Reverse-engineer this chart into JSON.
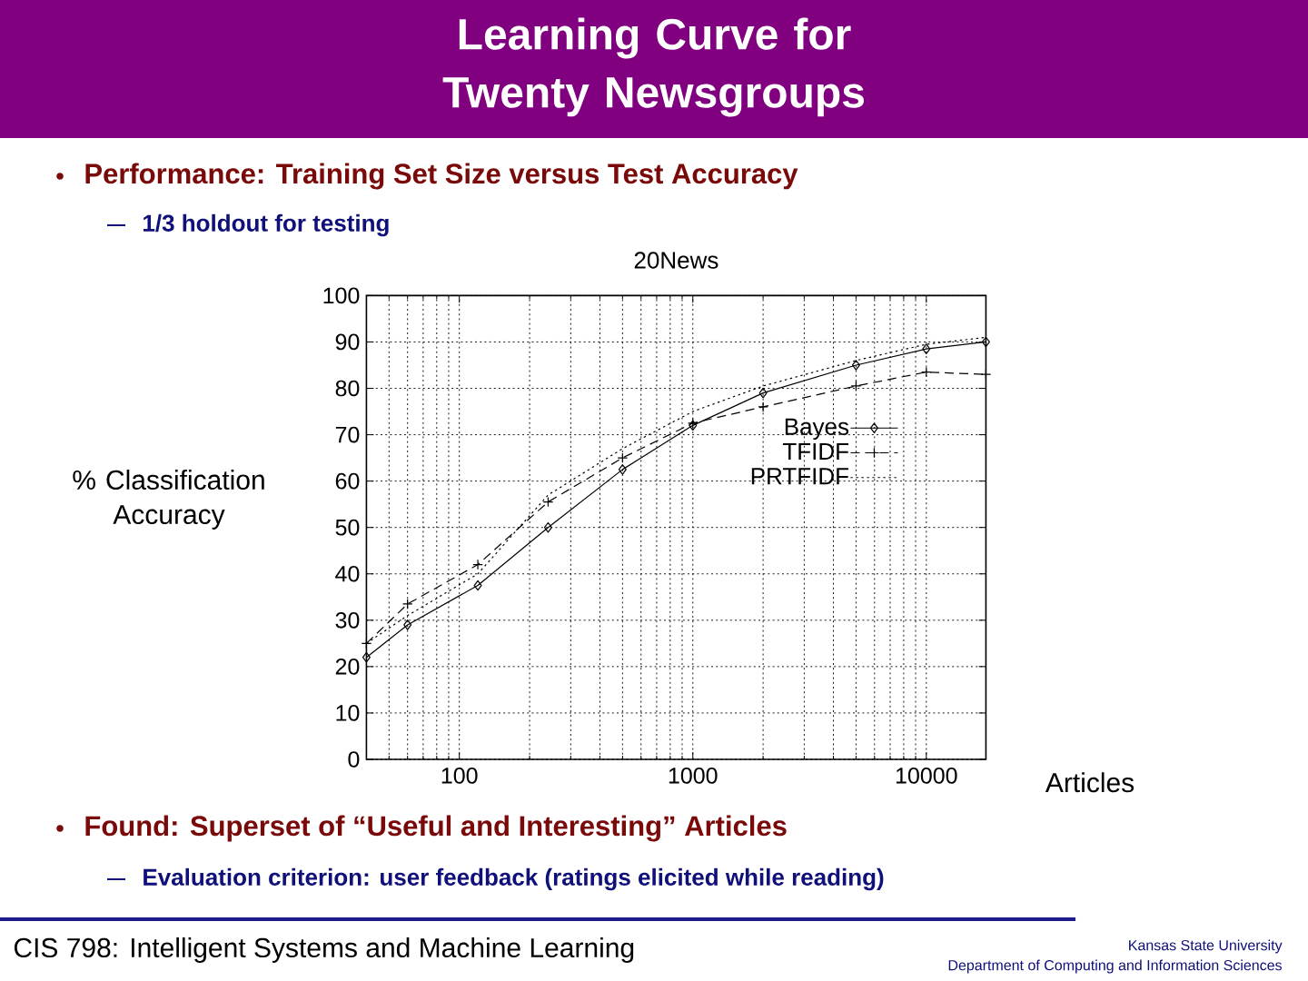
{
  "chart_data": {
    "type": "line",
    "title": "Learning Curve for Twenty Newsgroups",
    "subtitle": "20News",
    "xlabel": "Articles",
    "ylabel": "% Classification Accuracy",
    "annotations": [
      "Performance: Training Set Size versus Test Accuracy",
      "1/3 holdout for testing",
      "Found: Superset of “Useful and Interesting” Articles",
      "Evaluation criterion: user feedback (ratings elicited while reading)",
      "CIS 798: Intelligent Systems and Machine Learning",
      "Kansas State University",
      "Department of Computing and Information Sciences"
    ],
    "x": [
      40,
      60,
      120,
      240,
      500,
      1000,
      2000,
      5000,
      10000,
      18000
    ],
    "series": [
      {
        "name": "Bayes",
        "color": "#000000",
        "marker": "diamond",
        "line_style": "solid",
        "values": [
          22,
          29,
          37.5,
          50,
          62.5,
          72,
          79,
          85,
          88.5,
          90
        ]
      },
      {
        "name": "TFIDF",
        "color": "#000000",
        "marker": "cross",
        "line_style": "dashed",
        "values": [
          25,
          33.5,
          42,
          55.5,
          65,
          72.5,
          76,
          80.5,
          83.5,
          83
        ]
      },
      {
        "name": "PRTFIDF",
        "color": "#000000",
        "marker": "none",
        "line_style": "dotted",
        "values": [
          25,
          31,
          40,
          57,
          67,
          75,
          80.5,
          86,
          89.5,
          91
        ]
      }
    ],
    "xlim": [
      40,
      18000
    ],
    "ylim": [
      0,
      100
    ],
    "xticks": [
      100,
      1000,
      10000
    ],
    "yticks": [
      0,
      10,
      20,
      30,
      40,
      50,
      60,
      70,
      80,
      90,
      100
    ],
    "log": "x",
    "grid": true,
    "legend": "right"
  }
}
